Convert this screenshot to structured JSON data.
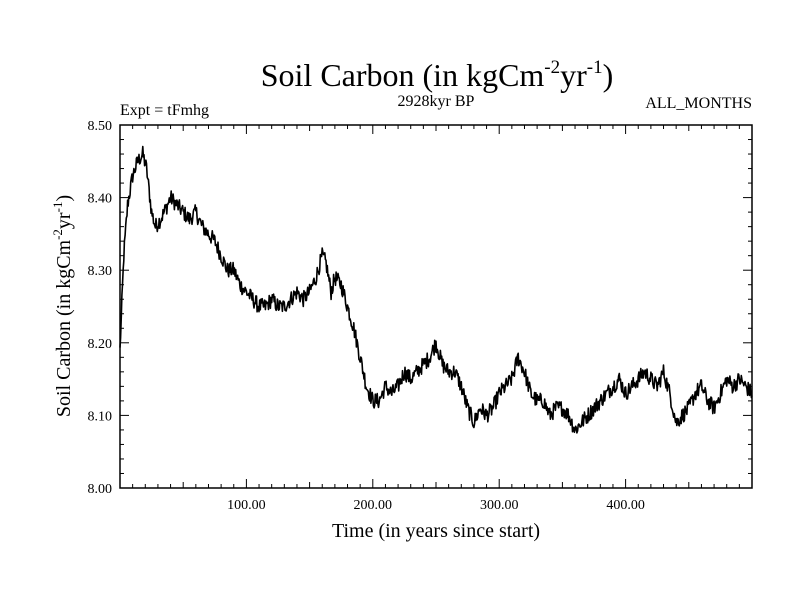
{
  "chart_data": {
    "type": "line",
    "title": "Soil Carbon (in kgCm",
    "title_exp1": "-2",
    "title_mid": "yr",
    "title_exp2": "-1",
    "title_end": ")",
    "subtitle_left": "Expt = tFmhg",
    "subtitle_center": "2928kyr BP",
    "subtitle_right": "ALL_MONTHS",
    "xlabel": "Time (in years since start)",
    "ylabel_main": "Soil Carbon (in kgCm",
    "ylabel_exp1": "-2",
    "ylabel_mid": "yr",
    "ylabel_exp2": "-1",
    "ylabel_end": ")",
    "xlim": [
      0,
      500
    ],
    "ylim": [
      8.0,
      8.5
    ],
    "x_ticks": [
      100,
      200,
      300,
      400
    ],
    "x_tick_labels": [
      "100.00",
      "200.00",
      "300.00",
      "400.00"
    ],
    "y_ticks": [
      8.0,
      8.1,
      8.2,
      8.3,
      8.4,
      8.5
    ],
    "y_tick_labels": [
      "8.00",
      "8.10",
      "8.20",
      "8.30",
      "8.40",
      "8.50"
    ],
    "line_color": "#000000",
    "series": [
      {
        "name": "Soil Carbon",
        "x": [
          0,
          3,
          6,
          10,
          14,
          18,
          21,
          25,
          28,
          32,
          35,
          40,
          45,
          50,
          55,
          60,
          65,
          70,
          75,
          80,
          85,
          90,
          95,
          100,
          105,
          110,
          115,
          120,
          125,
          130,
          135,
          140,
          145,
          150,
          155,
          160,
          163,
          167,
          170,
          175,
          180,
          185,
          190,
          195,
          200,
          205,
          210,
          215,
          220,
          225,
          230,
          235,
          240,
          245,
          250,
          255,
          260,
          265,
          270,
          275,
          280,
          285,
          290,
          295,
          300,
          305,
          310,
          315,
          320,
          325,
          330,
          335,
          340,
          345,
          350,
          355,
          360,
          365,
          370,
          375,
          380,
          385,
          390,
          395,
          400,
          405,
          410,
          415,
          420,
          425,
          430,
          435,
          440,
          445,
          450,
          455,
          460,
          465,
          470,
          475,
          480,
          485,
          490,
          495,
          500
        ],
        "values": [
          8.19,
          8.32,
          8.39,
          8.43,
          8.45,
          8.46,
          8.44,
          8.38,
          8.36,
          8.37,
          8.38,
          8.4,
          8.39,
          8.38,
          8.37,
          8.38,
          8.36,
          8.35,
          8.34,
          8.32,
          8.3,
          8.3,
          8.28,
          8.27,
          8.26,
          8.25,
          8.25,
          8.26,
          8.25,
          8.25,
          8.26,
          8.27,
          8.26,
          8.27,
          8.29,
          8.32,
          8.31,
          8.27,
          8.29,
          8.28,
          8.25,
          8.22,
          8.18,
          8.14,
          8.12,
          8.12,
          8.14,
          8.13,
          8.14,
          8.16,
          8.15,
          8.16,
          8.17,
          8.18,
          8.2,
          8.17,
          8.16,
          8.16,
          8.14,
          8.11,
          8.09,
          8.11,
          8.1,
          8.11,
          8.13,
          8.14,
          8.15,
          8.18,
          8.16,
          8.13,
          8.12,
          8.12,
          8.1,
          8.11,
          8.11,
          8.1,
          8.08,
          8.09,
          8.1,
          8.11,
          8.12,
          8.13,
          8.14,
          8.15,
          8.13,
          8.14,
          8.15,
          8.16,
          8.15,
          8.14,
          8.16,
          8.13,
          8.09,
          8.1,
          8.11,
          8.13,
          8.14,
          8.12,
          8.11,
          8.13,
          8.15,
          8.14,
          8.15,
          8.14,
          8.13
        ]
      }
    ]
  }
}
